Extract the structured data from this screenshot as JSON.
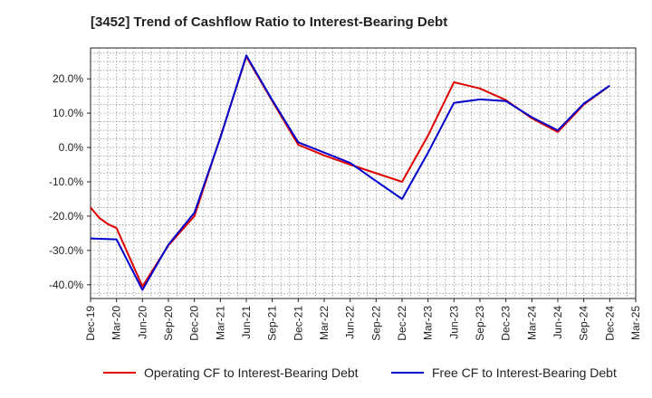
{
  "chart_data": {
    "type": "line",
    "title": "[3452]  Trend of Cashflow Ratio to Interest-Bearing Debt",
    "xlabel": "",
    "ylabel": "",
    "categories": [
      "Dec-19",
      "Mar-20",
      "Jun-20",
      "Sep-20",
      "Dec-20",
      "Mar-21",
      "Jun-21",
      "Sep-21",
      "Dec-21",
      "Mar-22",
      "Jun-22",
      "Sep-22",
      "Dec-22",
      "Mar-23",
      "Jun-23",
      "Sep-23",
      "Dec-23",
      "Mar-24",
      "Jun-24",
      "Sep-24",
      "Dec-24",
      "Mar-25"
    ],
    "yticks": [
      "-40.0%",
      "-30.0%",
      "-20.0%",
      "-10.0%",
      "0.0%",
      "10.0%",
      "20.0%"
    ],
    "ylim": [
      -44,
      29
    ],
    "grid": true,
    "legend_position": "bottom",
    "series": [
      {
        "name": "Operating CF to Interest-Bearing Debt",
        "color": "#e00000",
        "points": [
          {
            "x": "Dec-19",
            "y": -17.5
          },
          {
            "x": "Jan-20",
            "y": -20.5
          },
          {
            "x": "Feb-20",
            "y": -22.3
          },
          {
            "x": "Mar-20",
            "y": -23.5
          },
          {
            "x": "Jun-20",
            "y": -40.5
          },
          {
            "x": "Sep-20",
            "y": -28.5
          },
          {
            "x": "Dec-20",
            "y": -20.0
          },
          {
            "x": "Mar-21",
            "y": 3.0
          },
          {
            "x": "Jun-21",
            "y": 26.5
          },
          {
            "x": "Sep-21",
            "y": 13.5
          },
          {
            "x": "Dec-21",
            "y": 0.8
          },
          {
            "x": "Mar-22",
            "y": -2.3
          },
          {
            "x": "Jun-22",
            "y": -5.0
          },
          {
            "x": "Sep-22",
            "y": -7.5
          },
          {
            "x": "Dec-22",
            "y": -10.0
          },
          {
            "x": "Mar-23",
            "y": 3.5
          },
          {
            "x": "Jun-23",
            "y": 19.0
          },
          {
            "x": "Sep-23",
            "y": 17.2
          },
          {
            "x": "Dec-23",
            "y": 13.8
          },
          {
            "x": "Mar-24",
            "y": 8.5
          },
          {
            "x": "Jun-24",
            "y": 4.5
          },
          {
            "x": "Sep-24",
            "y": 12.5
          },
          {
            "x": "Dec-24",
            "y": 18.0
          }
        ]
      },
      {
        "name": "Free CF to Interest-Bearing Debt",
        "color": "#0000cc",
        "points": [
          {
            "x": "Dec-19",
            "y": -26.5
          },
          {
            "x": "Mar-20",
            "y": -26.8
          },
          {
            "x": "Jun-20",
            "y": -41.5
          },
          {
            "x": "Sep-20",
            "y": -28.3
          },
          {
            "x": "Dec-20",
            "y": -19.0
          },
          {
            "x": "Mar-21",
            "y": 2.8
          },
          {
            "x": "Jun-21",
            "y": 26.8
          },
          {
            "x": "Sep-21",
            "y": 13.8
          },
          {
            "x": "Dec-21",
            "y": 1.5
          },
          {
            "x": "Mar-22",
            "y": -1.5
          },
          {
            "x": "Jun-22",
            "y": -4.5
          },
          {
            "x": "Sep-22",
            "y": -9.8
          },
          {
            "x": "Dec-22",
            "y": -15.0
          },
          {
            "x": "Mar-23",
            "y": -1.5
          },
          {
            "x": "Jun-23",
            "y": 13.0
          },
          {
            "x": "Sep-23",
            "y": 14.0
          },
          {
            "x": "Dec-23",
            "y": 13.5
          },
          {
            "x": "Mar-24",
            "y": 8.8
          },
          {
            "x": "Jun-24",
            "y": 5.0
          },
          {
            "x": "Sep-24",
            "y": 12.8
          },
          {
            "x": "Dec-24",
            "y": 18.0
          }
        ]
      }
    ]
  }
}
